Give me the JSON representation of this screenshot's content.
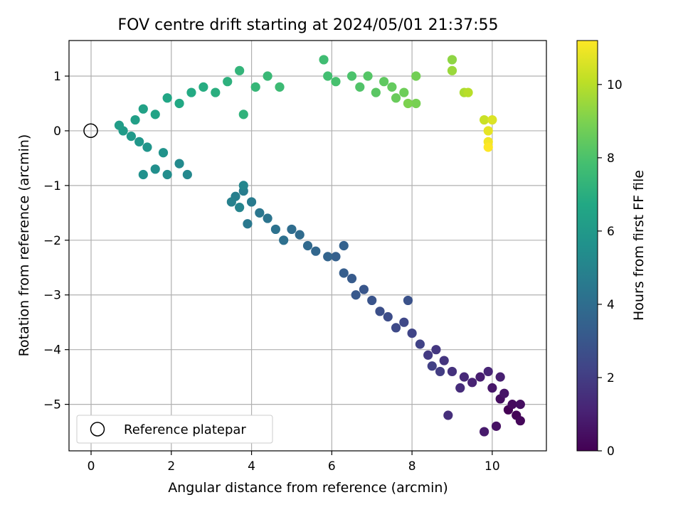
{
  "chart_data": {
    "type": "scatter",
    "title": "FOV centre drift starting at 2024/05/01 21:37:55",
    "xlabel": "Angular distance from reference (arcmin)",
    "ylabel": "Rotation from reference (arcmin)",
    "xlim": [
      -0.55,
      11.35
    ],
    "ylim": [
      -5.85,
      1.65
    ],
    "xticks": [
      0,
      2,
      4,
      6,
      8,
      10
    ],
    "yticks": [
      -5,
      -4,
      -3,
      -2,
      -1,
      0,
      1
    ],
    "grid": true,
    "colormap": "viridis",
    "colorbar": {
      "label": "Hours from first FF file",
      "range": [
        0,
        11.2
      ],
      "ticks": [
        0,
        2,
        4,
        6,
        8,
        10
      ]
    },
    "legend": {
      "position": "lower-left",
      "entries": [
        "Reference platepar"
      ]
    },
    "reference_point": {
      "x": 0,
      "y": 0
    },
    "series": [
      {
        "color_by": "hours",
        "points": [
          {
            "x": 10.4,
            "y": -5.1,
            "h": 0.0
          },
          {
            "x": 10.6,
            "y": -5.2,
            "h": 0.1
          },
          {
            "x": 10.7,
            "y": -5.3,
            "h": 0.2
          },
          {
            "x": 10.5,
            "y": -5.0,
            "h": 0.3
          },
          {
            "x": 10.2,
            "y": -4.9,
            "h": 0.4
          },
          {
            "x": 10.7,
            "y": -5.0,
            "h": 0.4
          },
          {
            "x": 10.1,
            "y": -5.4,
            "h": 0.5
          },
          {
            "x": 10.3,
            "y": -4.8,
            "h": 0.6
          },
          {
            "x": 10.0,
            "y": -4.7,
            "h": 0.7
          },
          {
            "x": 9.8,
            "y": -5.5,
            "h": 0.8
          },
          {
            "x": 9.7,
            "y": -4.5,
            "h": 0.9
          },
          {
            "x": 10.2,
            "y": -4.5,
            "h": 1.0
          },
          {
            "x": 9.5,
            "y": -4.6,
            "h": 1.1
          },
          {
            "x": 9.9,
            "y": -4.4,
            "h": 1.2
          },
          {
            "x": 9.3,
            "y": -4.5,
            "h": 1.3
          },
          {
            "x": 9.2,
            "y": -4.7,
            "h": 1.4
          },
          {
            "x": 8.9,
            "y": -5.2,
            "h": 1.5
          },
          {
            "x": 9.0,
            "y": -4.4,
            "h": 1.6
          },
          {
            "x": 8.8,
            "y": -4.2,
            "h": 1.7
          },
          {
            "x": 8.6,
            "y": -4.0,
            "h": 1.8
          },
          {
            "x": 8.4,
            "y": -4.1,
            "h": 1.9
          },
          {
            "x": 8.7,
            "y": -4.4,
            "h": 2.0
          },
          {
            "x": 8.5,
            "y": -4.3,
            "h": 2.1
          },
          {
            "x": 8.2,
            "y": -3.9,
            "h": 2.2
          },
          {
            "x": 8.0,
            "y": -3.7,
            "h": 2.3
          },
          {
            "x": 7.8,
            "y": -3.5,
            "h": 2.4
          },
          {
            "x": 7.6,
            "y": -3.6,
            "h": 2.5
          },
          {
            "x": 7.4,
            "y": -3.4,
            "h": 2.6
          },
          {
            "x": 7.2,
            "y": -3.3,
            "h": 2.7
          },
          {
            "x": 7.9,
            "y": -3.1,
            "h": 2.8
          },
          {
            "x": 7.0,
            "y": -3.1,
            "h": 2.9
          },
          {
            "x": 6.8,
            "y": -2.9,
            "h": 3.0
          },
          {
            "x": 6.6,
            "y": -3.0,
            "h": 3.1
          },
          {
            "x": 6.5,
            "y": -2.7,
            "h": 3.2
          },
          {
            "x": 6.3,
            "y": -2.6,
            "h": 3.3
          },
          {
            "x": 6.1,
            "y": -2.3,
            "h": 3.4
          },
          {
            "x": 6.3,
            "y": -2.1,
            "h": 3.5
          },
          {
            "x": 5.9,
            "y": -2.3,
            "h": 3.6
          },
          {
            "x": 5.6,
            "y": -2.2,
            "h": 3.7
          },
          {
            "x": 5.4,
            "y": -2.1,
            "h": 3.8
          },
          {
            "x": 5.2,
            "y": -1.9,
            "h": 3.9
          },
          {
            "x": 5.0,
            "y": -1.8,
            "h": 4.0
          },
          {
            "x": 4.8,
            "y": -2.0,
            "h": 4.1
          },
          {
            "x": 4.6,
            "y": -1.8,
            "h": 4.2
          },
          {
            "x": 4.4,
            "y": -1.6,
            "h": 4.3
          },
          {
            "x": 4.2,
            "y": -1.5,
            "h": 4.4
          },
          {
            "x": 3.9,
            "y": -1.7,
            "h": 4.5
          },
          {
            "x": 4.0,
            "y": -1.3,
            "h": 4.6
          },
          {
            "x": 3.8,
            "y": -1.1,
            "h": 4.7
          },
          {
            "x": 3.6,
            "y": -1.2,
            "h": 4.8
          },
          {
            "x": 3.5,
            "y": -1.3,
            "h": 4.9
          },
          {
            "x": 3.7,
            "y": -1.4,
            "h": 5.0
          },
          {
            "x": 3.8,
            "y": -1.0,
            "h": 5.1
          },
          {
            "x": 2.4,
            "y": -0.8,
            "h": 5.2
          },
          {
            "x": 2.2,
            "y": -0.6,
            "h": 5.3
          },
          {
            "x": 1.9,
            "y": -0.8,
            "h": 5.4
          },
          {
            "x": 1.6,
            "y": -0.7,
            "h": 5.5
          },
          {
            "x": 1.3,
            "y": -0.8,
            "h": 5.6
          },
          {
            "x": 1.8,
            "y": -0.4,
            "h": 5.7
          },
          {
            "x": 1.4,
            "y": -0.3,
            "h": 5.8
          },
          {
            "x": 1.2,
            "y": -0.2,
            "h": 5.9
          },
          {
            "x": 1.0,
            "y": -0.1,
            "h": 6.0
          },
          {
            "x": 0.8,
            "y": 0.0,
            "h": 6.1
          },
          {
            "x": 0.7,
            "y": 0.1,
            "h": 6.2
          },
          {
            "x": 1.1,
            "y": 0.2,
            "h": 6.3
          },
          {
            "x": 1.3,
            "y": 0.4,
            "h": 6.4
          },
          {
            "x": 1.6,
            "y": 0.3,
            "h": 6.5
          },
          {
            "x": 1.9,
            "y": 0.6,
            "h": 6.6
          },
          {
            "x": 2.2,
            "y": 0.5,
            "h": 6.7
          },
          {
            "x": 2.5,
            "y": 0.7,
            "h": 6.8
          },
          {
            "x": 2.8,
            "y": 0.8,
            "h": 6.9
          },
          {
            "x": 3.1,
            "y": 0.7,
            "h": 7.0
          },
          {
            "x": 3.4,
            "y": 0.9,
            "h": 7.1
          },
          {
            "x": 3.8,
            "y": 0.3,
            "h": 7.2
          },
          {
            "x": 3.7,
            "y": 1.1,
            "h": 7.3
          },
          {
            "x": 4.1,
            "y": 0.8,
            "h": 7.4
          },
          {
            "x": 4.4,
            "y": 1.0,
            "h": 7.5
          },
          {
            "x": 4.7,
            "y": 0.8,
            "h": 7.6
          },
          {
            "x": 5.8,
            "y": 1.3,
            "h": 7.7
          },
          {
            "x": 5.9,
            "y": 1.0,
            "h": 7.8
          },
          {
            "x": 6.1,
            "y": 0.9,
            "h": 7.9
          },
          {
            "x": 6.5,
            "y": 1.0,
            "h": 8.0
          },
          {
            "x": 6.7,
            "y": 0.8,
            "h": 8.1
          },
          {
            "x": 6.9,
            "y": 1.0,
            "h": 8.2
          },
          {
            "x": 7.1,
            "y": 0.7,
            "h": 8.3
          },
          {
            "x": 7.3,
            "y": 0.9,
            "h": 8.4
          },
          {
            "x": 7.5,
            "y": 0.8,
            "h": 8.5
          },
          {
            "x": 7.6,
            "y": 0.6,
            "h": 8.6
          },
          {
            "x": 7.8,
            "y": 0.7,
            "h": 8.7
          },
          {
            "x": 8.1,
            "y": 1.0,
            "h": 8.8
          },
          {
            "x": 8.1,
            "y": 0.5,
            "h": 8.9
          },
          {
            "x": 7.9,
            "y": 0.5,
            "h": 9.0
          },
          {
            "x": 9.0,
            "y": 1.3,
            "h": 9.3
          },
          {
            "x": 9.0,
            "y": 1.1,
            "h": 9.5
          },
          {
            "x": 9.3,
            "y": 0.7,
            "h": 9.8
          },
          {
            "x": 9.4,
            "y": 0.7,
            "h": 10.0
          },
          {
            "x": 9.8,
            "y": 0.2,
            "h": 10.3
          },
          {
            "x": 10.0,
            "y": 0.2,
            "h": 10.6
          },
          {
            "x": 9.9,
            "y": 0.0,
            "h": 10.8
          },
          {
            "x": 9.9,
            "y": -0.2,
            "h": 11.0
          },
          {
            "x": 9.9,
            "y": -0.3,
            "h": 11.2
          }
        ]
      }
    ]
  }
}
